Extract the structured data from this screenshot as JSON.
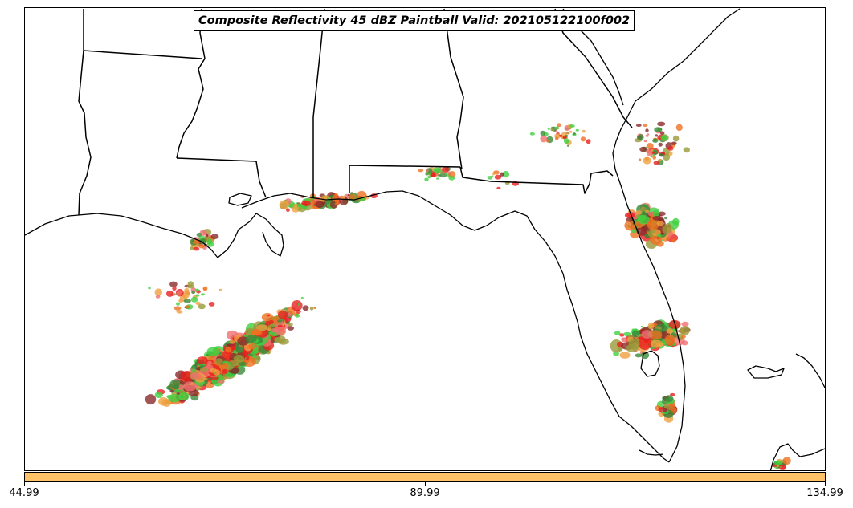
{
  "title": "Composite Reflectivity 45 dBZ Paintball Valid: 202105122100f002",
  "colorbar": {
    "color": "#ffc266",
    "tick_labels": [
      "44.99",
      "89.99",
      "134.99"
    ]
  },
  "map": {
    "region": "Gulf Coast and Florida",
    "layers": [
      "state-borders",
      "coastline",
      "reflectivity-paintball"
    ],
    "paintball_colors": [
      "#e82020",
      "#f0a040",
      "#3a8a3a",
      "#8b2a2a",
      "#9a9a3a",
      "#40d040",
      "#ee7020",
      "#f07070"
    ]
  }
}
